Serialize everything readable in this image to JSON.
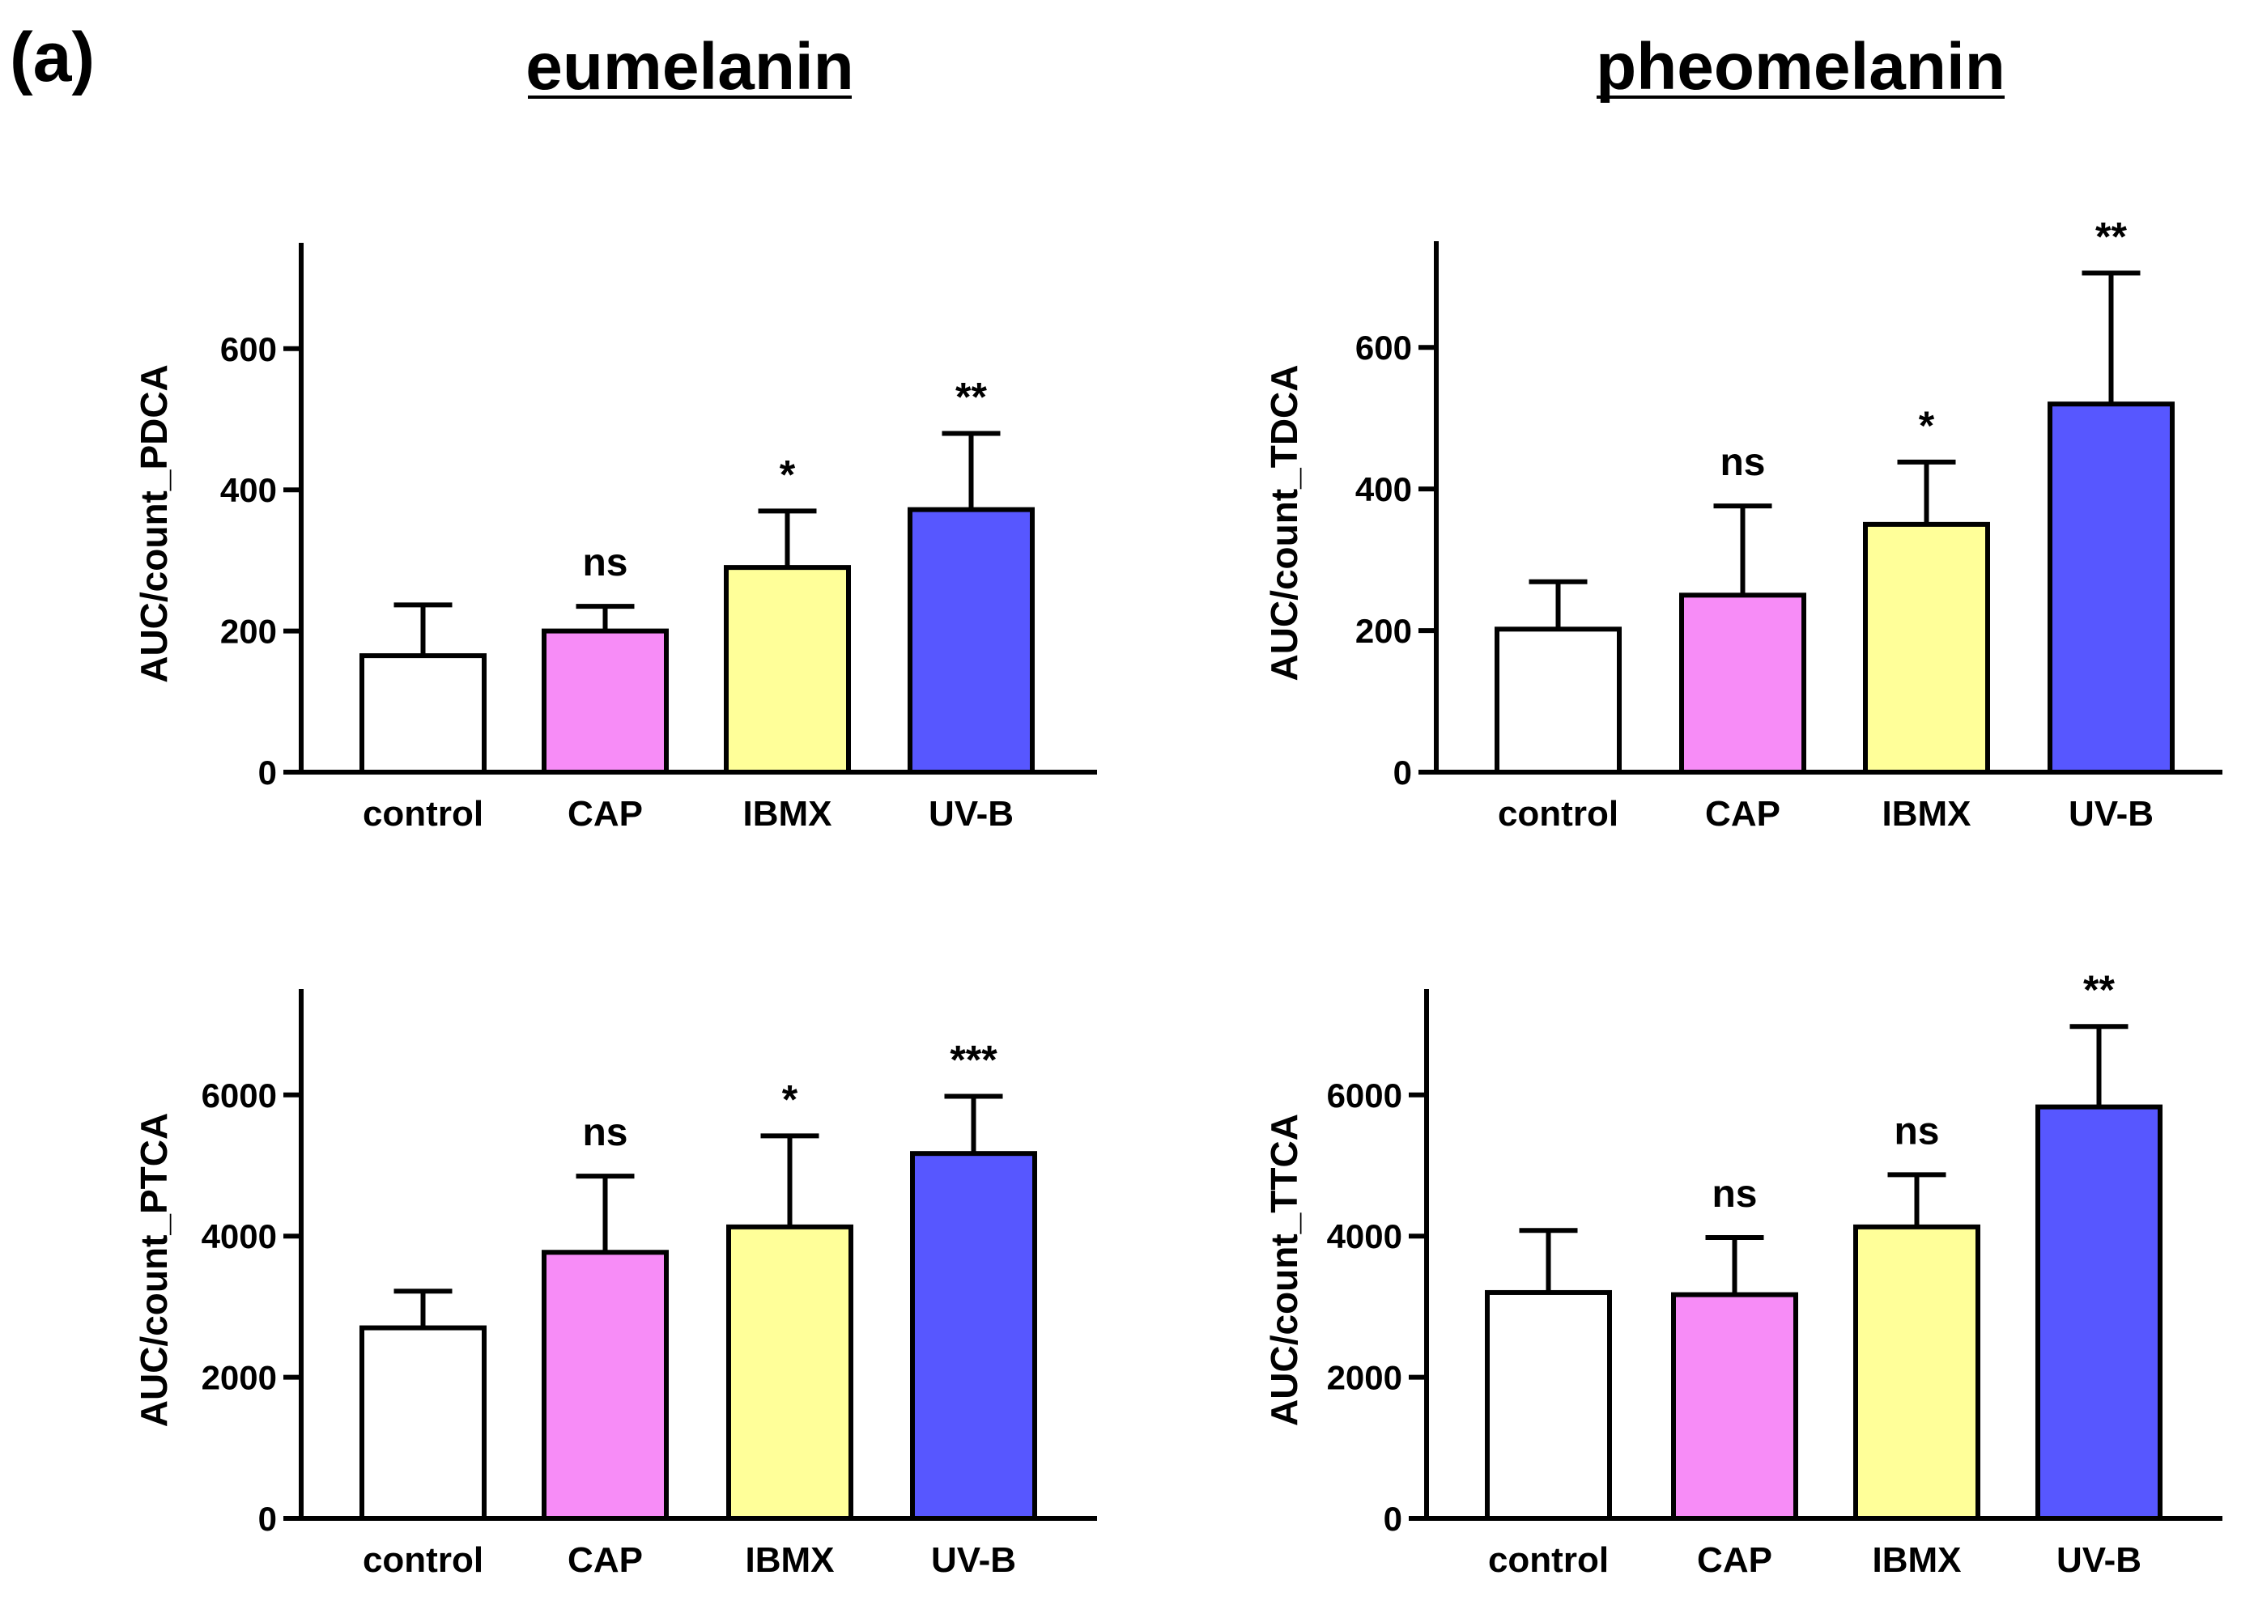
{
  "panel_label": "(a)",
  "column_titles": [
    "eumelanin",
    "pheomelanin"
  ],
  "colors": {
    "control": "#ffffff",
    "CAP": "#f78cf7",
    "IBMX": "#ffff99",
    "UV-B": "#5757ff",
    "stroke": "#000000"
  },
  "chart_data": [
    {
      "type": "bar",
      "ylabel": "AUC/count_PDCA",
      "categories": [
        "control",
        "CAP",
        "IBMX",
        "UV-B"
      ],
      "values": [
        165,
        200,
        290,
        372
      ],
      "errors": [
        72,
        35,
        80,
        108
      ],
      "significance": [
        "",
        "ns",
        "*",
        "**"
      ],
      "ylim": [
        0,
        750
      ],
      "yticks": [
        0,
        200,
        400,
        600
      ],
      "grid": false
    },
    {
      "type": "bar",
      "ylabel": "AUC/count_TDCA",
      "categories": [
        "control",
        "CAP",
        "IBMX",
        "UV-B"
      ],
      "values": [
        202,
        250,
        350,
        520
      ],
      "errors": [
        67,
        126,
        88,
        185
      ],
      "significance": [
        "",
        "ns",
        "*",
        "**"
      ],
      "ylim": [
        0,
        750
      ],
      "yticks": [
        0,
        200,
        400,
        600
      ],
      "grid": false
    },
    {
      "type": "bar",
      "ylabel": "AUC/count_PTCA",
      "categories": [
        "control",
        "CAP",
        "IBMX",
        "UV-B"
      ],
      "values": [
        2700,
        3770,
        4130,
        5170
      ],
      "errors": [
        520,
        1080,
        1290,
        810
      ],
      "significance": [
        "",
        "ns",
        "*",
        "***"
      ],
      "ylim": [
        0,
        7500
      ],
      "yticks": [
        0,
        2000,
        4000,
        6000
      ],
      "grid": false
    },
    {
      "type": "bar",
      "ylabel": "AUC/count_TTCA",
      "categories": [
        "control",
        "CAP",
        "IBMX",
        "UV-B"
      ],
      "values": [
        3200,
        3170,
        4130,
        5830
      ],
      "errors": [
        880,
        810,
        740,
        1140
      ],
      "significance": [
        "",
        "ns",
        "ns",
        "**"
      ],
      "ylim": [
        0,
        7500
      ],
      "yticks": [
        0,
        2000,
        4000,
        6000
      ],
      "grid": false
    }
  ]
}
